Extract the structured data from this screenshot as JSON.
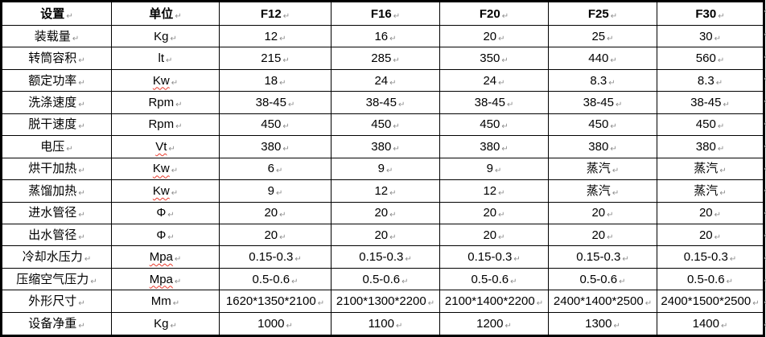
{
  "table": {
    "title_semantic": "industrial-washer-specification-table",
    "headers": [
      "设置",
      "单位",
      "F12",
      "F16",
      "F20",
      "F25",
      "F30"
    ],
    "rows": [
      {
        "label": "装载量",
        "unit": "Kg",
        "unit_spellcheck": false,
        "values": [
          "12",
          "16",
          "20",
          "25",
          "30"
        ]
      },
      {
        "label": "转筒容积",
        "unit": "lt",
        "unit_spellcheck": false,
        "values": [
          "215",
          "285",
          "350",
          "440",
          "560"
        ]
      },
      {
        "label": "额定功率",
        "unit": "Kw",
        "unit_spellcheck": true,
        "values": [
          "18",
          "24",
          "24",
          "8.3",
          "8.3"
        ]
      },
      {
        "label": "洗涤速度",
        "unit": "Rpm",
        "unit_spellcheck": false,
        "values": [
          "38-45",
          "38-45",
          "38-45",
          "38-45",
          "38-45"
        ]
      },
      {
        "label": "脱干速度",
        "unit": "Rpm",
        "unit_spellcheck": false,
        "values": [
          "450",
          "450",
          "450",
          "450",
          "450"
        ]
      },
      {
        "label": "电压",
        "unit": "Vt",
        "unit_spellcheck": true,
        "values": [
          "380",
          "380",
          "380",
          "380",
          "380"
        ]
      },
      {
        "label": "烘干加热",
        "unit": "Kw",
        "unit_spellcheck": true,
        "values": [
          "6",
          "9",
          "9",
          "蒸汽",
          "蒸汽"
        ]
      },
      {
        "label": "蒸馏加热",
        "unit": "Kw",
        "unit_spellcheck": true,
        "values": [
          "9",
          "12",
          "12",
          "蒸汽",
          "蒸汽"
        ]
      },
      {
        "label": "进水管径",
        "unit": "Φ",
        "unit_spellcheck": false,
        "values": [
          "20",
          "20",
          "20",
          "20",
          "20"
        ]
      },
      {
        "label": "出水管径",
        "unit": "Φ",
        "unit_spellcheck": false,
        "values": [
          "20",
          "20",
          "20",
          "20",
          "20"
        ]
      },
      {
        "label": "冷却水压力",
        "unit": "Mpa",
        "unit_spellcheck": true,
        "values": [
          "0.15-0.3",
          "0.15-0.3",
          "0.15-0.3",
          "0.15-0.3",
          "0.15-0.3"
        ]
      },
      {
        "label": "压缩空气压力",
        "unit": "Mpa",
        "unit_spellcheck": true,
        "values": [
          "0.5-0.6",
          "0.5-0.6",
          "0.5-0.6",
          "0.5-0.6",
          "0.5-0.6"
        ]
      },
      {
        "label": "外形尺寸",
        "unit": "Mm",
        "unit_spellcheck": false,
        "values": [
          "1620*1350*2100",
          "2100*1300*2200",
          "2100*1400*2200",
          "2400*1400*2500",
          "2400*1500*2500"
        ]
      },
      {
        "label": "设备净重",
        "unit": "Kg",
        "unit_spellcheck": false,
        "values": [
          "1000",
          "1100",
          "1200",
          "1300",
          "1400"
        ]
      }
    ]
  },
  "icons": {
    "paragraph_mark": "↵"
  },
  "colors": {
    "border": "#000000",
    "text": "#000000",
    "paragraph_mark": "#8c8c8c",
    "spellcheck_squiggle": "#e8392b"
  }
}
